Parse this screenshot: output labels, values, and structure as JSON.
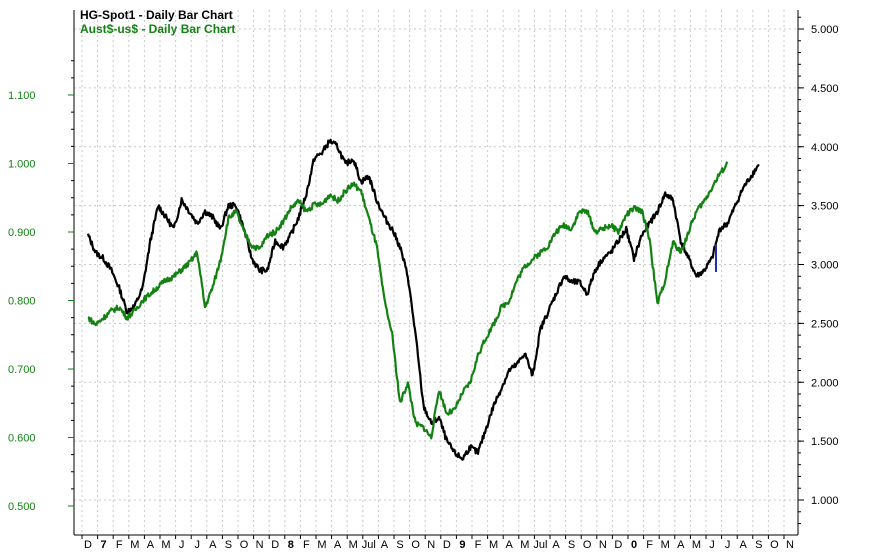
{
  "colors": {
    "background": "#ffffff",
    "grid": "#c8c8c8",
    "axis": "#000000",
    "series1": "#000000",
    "series2": "#138213",
    "left_axis_text": "#138213",
    "right_axis_text": "#000000",
    "highlight": "#1f2fb0"
  },
  "chart_data": {
    "type": "line",
    "titles": [
      "HG-Spot1 - Daily Bar Chart",
      "Aust$-us$ - Daily Bar Chart"
    ],
    "x_labels": [
      "D",
      "7",
      "F",
      "M",
      "A",
      "M",
      "J",
      "J",
      "A",
      "S",
      "O",
      "N",
      "D",
      "8",
      "F",
      "M",
      "A",
      "M",
      "Jul",
      "A",
      "S",
      "O",
      "N",
      "D",
      "9",
      "F",
      "M",
      "A",
      "M",
      "Jul",
      "A",
      "S",
      "O",
      "N",
      "D",
      "0",
      "F",
      "M",
      "A",
      "M",
      "J",
      "J",
      "A",
      "S",
      "O",
      "N"
    ],
    "x_major_labels": [
      "7",
      "8",
      "9",
      "0"
    ],
    "left_axis": {
      "ticks": [
        "1.100",
        "1.000",
        "0.900",
        "0.800",
        "0.700",
        "0.600",
        "0.500"
      ],
      "range": [
        0.5,
        1.1
      ]
    },
    "right_axis": {
      "ticks": [
        "5.000",
        "4.500",
        "4.000",
        "3.500",
        "3.000",
        "2.500",
        "2.000",
        "1.500",
        "1.000"
      ],
      "range": [
        1.0,
        5.0
      ]
    },
    "grid": true,
    "series": [
      {
        "name": "HG-Spot1",
        "axis": "right",
        "points": [
          [
            0,
            3.25
          ],
          [
            0.5,
            3.1
          ],
          [
            1,
            3.05
          ],
          [
            1.5,
            2.95
          ],
          [
            2,
            2.8
          ],
          [
            2.5,
            2.6
          ],
          [
            3,
            2.65
          ],
          [
            3.5,
            2.8
          ],
          [
            4,
            3.2
          ],
          [
            4.5,
            3.5
          ],
          [
            5,
            3.4
          ],
          [
            5.5,
            3.3
          ],
          [
            6,
            3.55
          ],
          [
            6.5,
            3.45
          ],
          [
            7,
            3.35
          ],
          [
            7.5,
            3.45
          ],
          [
            8,
            3.4
          ],
          [
            8.5,
            3.3
          ],
          [
            9,
            3.5
          ],
          [
            9.5,
            3.5
          ],
          [
            10,
            3.3
          ],
          [
            10.5,
            3.05
          ],
          [
            11,
            2.95
          ],
          [
            11.5,
            2.95
          ],
          [
            12,
            3.2
          ],
          [
            12.5,
            3.15
          ],
          [
            13,
            3.25
          ],
          [
            13.5,
            3.4
          ],
          [
            14,
            3.6
          ],
          [
            14.5,
            3.9
          ],
          [
            15,
            3.95
          ],
          [
            15.5,
            4.05
          ],
          [
            16,
            4.0
          ],
          [
            16.5,
            3.85
          ],
          [
            17,
            3.9
          ],
          [
            17.5,
            3.7
          ],
          [
            18,
            3.75
          ],
          [
            18.5,
            3.55
          ],
          [
            19,
            3.4
          ],
          [
            19.5,
            3.3
          ],
          [
            20,
            3.15
          ],
          [
            20.5,
            2.9
          ],
          [
            21,
            2.4
          ],
          [
            21.5,
            1.8
          ],
          [
            22,
            1.65
          ],
          [
            22.5,
            1.7
          ],
          [
            23,
            1.5
          ],
          [
            23.5,
            1.4
          ],
          [
            24,
            1.35
          ],
          [
            24.5,
            1.45
          ],
          [
            25,
            1.4
          ],
          [
            25.5,
            1.6
          ],
          [
            26,
            1.8
          ],
          [
            26.5,
            1.95
          ],
          [
            27,
            2.1
          ],
          [
            27.5,
            2.15
          ],
          [
            28,
            2.25
          ],
          [
            28.5,
            2.05
          ],
          [
            29,
            2.45
          ],
          [
            29.5,
            2.6
          ],
          [
            30,
            2.75
          ],
          [
            30.5,
            2.9
          ],
          [
            31,
            2.85
          ],
          [
            31.5,
            2.85
          ],
          [
            32,
            2.75
          ],
          [
            32.5,
            2.95
          ],
          [
            33,
            3.05
          ],
          [
            33.5,
            3.1
          ],
          [
            34,
            3.2
          ],
          [
            34.5,
            3.3
          ],
          [
            35,
            3.05
          ],
          [
            35.5,
            3.25
          ],
          [
            36,
            3.35
          ],
          [
            36.5,
            3.45
          ],
          [
            37,
            3.6
          ],
          [
            37.5,
            3.55
          ],
          [
            38,
            3.2
          ],
          [
            38.5,
            3.05
          ],
          [
            39,
            2.9
          ],
          [
            39.5,
            2.95
          ],
          [
            40,
            3.05
          ],
          [
            40.5,
            3.3
          ],
          [
            41,
            3.35
          ],
          [
            41.5,
            3.5
          ],
          [
            42,
            3.65
          ],
          [
            42.5,
            3.75
          ],
          [
            43,
            3.85
          ]
        ]
      },
      {
        "name": "Aust$-us$",
        "axis": "left",
        "points": [
          [
            0,
            0.775
          ],
          [
            0.5,
            0.765
          ],
          [
            1,
            0.775
          ],
          [
            1.5,
            0.785
          ],
          [
            2,
            0.79
          ],
          [
            2.5,
            0.775
          ],
          [
            3,
            0.785
          ],
          [
            3.5,
            0.8
          ],
          [
            4,
            0.81
          ],
          [
            4.5,
            0.82
          ],
          [
            5,
            0.83
          ],
          [
            5.5,
            0.835
          ],
          [
            6,
            0.845
          ],
          [
            6.5,
            0.855
          ],
          [
            7,
            0.87
          ],
          [
            7.5,
            0.79
          ],
          [
            8,
            0.82
          ],
          [
            8.5,
            0.86
          ],
          [
            9,
            0.92
          ],
          [
            9.5,
            0.93
          ],
          [
            10,
            0.9
          ],
          [
            10.5,
            0.88
          ],
          [
            11,
            0.875
          ],
          [
            11.5,
            0.895
          ],
          [
            12,
            0.9
          ],
          [
            12.5,
            0.915
          ],
          [
            13,
            0.935
          ],
          [
            13.5,
            0.945
          ],
          [
            14,
            0.93
          ],
          [
            14.5,
            0.94
          ],
          [
            15,
            0.94
          ],
          [
            15.5,
            0.955
          ],
          [
            16,
            0.945
          ],
          [
            16.5,
            0.96
          ],
          [
            17,
            0.97
          ],
          [
            17.5,
            0.96
          ],
          [
            18,
            0.92
          ],
          [
            18.5,
            0.88
          ],
          [
            19,
            0.8
          ],
          [
            19.5,
            0.75
          ],
          [
            20,
            0.65
          ],
          [
            20.5,
            0.68
          ],
          [
            21,
            0.62
          ],
          [
            21.5,
            0.615
          ],
          [
            22,
            0.6
          ],
          [
            22.5,
            0.67
          ],
          [
            23,
            0.635
          ],
          [
            23.5,
            0.64
          ],
          [
            24,
            0.665
          ],
          [
            24.5,
            0.68
          ],
          [
            25,
            0.72
          ],
          [
            25.5,
            0.745
          ],
          [
            26,
            0.765
          ],
          [
            26.5,
            0.79
          ],
          [
            27,
            0.8
          ],
          [
            27.5,
            0.83
          ],
          [
            28,
            0.85
          ],
          [
            28.5,
            0.86
          ],
          [
            29,
            0.87
          ],
          [
            29.5,
            0.88
          ],
          [
            30,
            0.9
          ],
          [
            30.5,
            0.91
          ],
          [
            31,
            0.905
          ],
          [
            31.5,
            0.93
          ],
          [
            32,
            0.93
          ],
          [
            32.5,
            0.9
          ],
          [
            33,
            0.905
          ],
          [
            33.5,
            0.91
          ],
          [
            34,
            0.9
          ],
          [
            34.5,
            0.925
          ],
          [
            35,
            0.935
          ],
          [
            35.5,
            0.93
          ],
          [
            36,
            0.89
          ],
          [
            36.5,
            0.795
          ],
          [
            37,
            0.83
          ],
          [
            37.5,
            0.885
          ],
          [
            38,
            0.87
          ],
          [
            38.5,
            0.9
          ],
          [
            39,
            0.93
          ],
          [
            39.5,
            0.945
          ],
          [
            40,
            0.965
          ],
          [
            40.5,
            0.985
          ],
          [
            41,
            1.0
          ]
        ]
      }
    ]
  }
}
